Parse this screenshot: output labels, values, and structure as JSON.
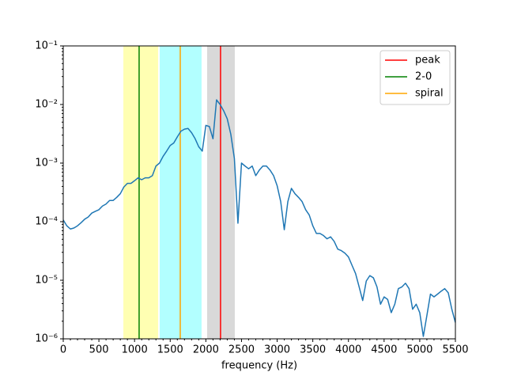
{
  "chart_data": {
    "type": "line",
    "xlabel": "frequency (Hz)",
    "yscale": "log",
    "xlim": [
      0,
      5500
    ],
    "xticks": [
      0,
      500,
      1000,
      1500,
      2000,
      2500,
      3000,
      3500,
      4000,
      4500,
      5000,
      5500
    ],
    "ylim": [
      1e-06,
      0.1
    ],
    "yticks": [
      {
        "value": 1e-06,
        "label": "10⁻⁶"
      },
      {
        "value": 1e-05,
        "label": "10⁻⁵"
      },
      {
        "value": 0.0001,
        "label": "10⁻⁴"
      },
      {
        "value": 0.001,
        "label": "10⁻³"
      },
      {
        "value": 0.01,
        "label": "10⁻²"
      },
      {
        "value": 0.1,
        "label": "10⁻¹"
      }
    ],
    "legend": "upper right",
    "x": [
      0,
      50,
      100,
      150,
      200,
      250,
      300,
      350,
      400,
      450,
      500,
      550,
      600,
      650,
      700,
      750,
      800,
      850,
      900,
      950,
      1000,
      1050,
      1100,
      1150,
      1200,
      1250,
      1300,
      1350,
      1400,
      1450,
      1500,
      1550,
      1600,
      1650,
      1700,
      1750,
      1800,
      1850,
      1900,
      1950,
      2000,
      2050,
      2100,
      2150,
      2200,
      2250,
      2300,
      2350,
      2400,
      2450,
      2500,
      2550,
      2600,
      2650,
      2700,
      2750,
      2800,
      2850,
      2900,
      2950,
      3000,
      3050,
      3100,
      3150,
      3200,
      3250,
      3300,
      3350,
      3400,
      3450,
      3500,
      3550,
      3600,
      3650,
      3700,
      3750,
      3800,
      3850,
      3900,
      3950,
      4000,
      4050,
      4100,
      4150,
      4200,
      4250,
      4300,
      4350,
      4400,
      4450,
      4500,
      4550,
      4600,
      4650,
      4700,
      4750,
      4800,
      4850,
      4900,
      4950,
      5000,
      5050,
      5100,
      5150,
      5200,
      5250,
      5300,
      5350,
      5400,
      5450,
      5500
    ],
    "series": [
      {
        "color": "#1f77b4",
        "values": [
          0.000107,
          8.5e-05,
          7.5e-05,
          7.8e-05,
          8.5e-05,
          9.6e-05,
          0.00011,
          0.00012,
          0.00014,
          0.00015,
          0.00016,
          0.000185,
          0.0002,
          0.00023,
          0.00023,
          0.00026,
          0.0003,
          0.00039,
          0.00045,
          0.00045,
          0.0005,
          0.00056,
          0.00052,
          0.00056,
          0.00056,
          0.00061,
          0.00089,
          0.001,
          0.0013,
          0.0016,
          0.002,
          0.0022,
          0.0028,
          0.0035,
          0.0038,
          0.0039,
          0.0033,
          0.0026,
          0.0019,
          0.0016,
          0.0044,
          0.0042,
          0.0026,
          0.012,
          0.01,
          0.0078,
          0.0057,
          0.0031,
          0.0012,
          9.4e-05,
          0.001,
          0.00089,
          0.0008,
          0.00089,
          0.00061,
          0.00076,
          0.00089,
          0.00089,
          0.00076,
          0.00061,
          0.00041,
          0.00022,
          7.3e-05,
          0.00022,
          0.00037,
          0.0003,
          0.00026,
          0.00022,
          0.00016,
          0.00013,
          8.5e-05,
          6.3e-05,
          6.3e-05,
          5.8e-05,
          5.1e-05,
          5.5e-05,
          4.6e-05,
          3.4e-05,
          3.2e-05,
          2.9e-05,
          2.5e-05,
          1.8e-05,
          1.3e-05,
          7.7e-06,
          4.5e-06,
          9.7e-06,
          1.2e-05,
          1.1e-05,
          7.7e-06,
          3.9e-06,
          5.2e-06,
          4.7e-06,
          2.8e-06,
          3.9e-06,
          7.2e-06,
          7.7e-06,
          8.9e-06,
          7.2e-06,
          3.2e-06,
          3.9e-06,
          2.8e-06,
          1.1e-06,
          2.5e-06,
          5.8e-06,
          5.2e-06,
          5.8e-06,
          6.5e-06,
          7.2e-06,
          6.1e-06,
          3.2e-06,
          1.9e-06
        ]
      }
    ],
    "spans": [
      {
        "x": [
          843,
          1330
        ],
        "color": "yellow",
        "alpha": 0.3
      },
      {
        "x": [
          1353,
          1940
        ],
        "color": "cyan",
        "alpha": 0.3
      },
      {
        "x": [
          2018,
          2406
        ],
        "color": "gray",
        "alpha": 0.3
      }
    ],
    "vlines": [
      {
        "name": "peak",
        "color": "red",
        "x": 2206
      },
      {
        "name": "2-0",
        "color": "green",
        "x": 1064
      },
      {
        "name": "spiral",
        "color": "orange",
        "x": 1641
      }
    ]
  }
}
